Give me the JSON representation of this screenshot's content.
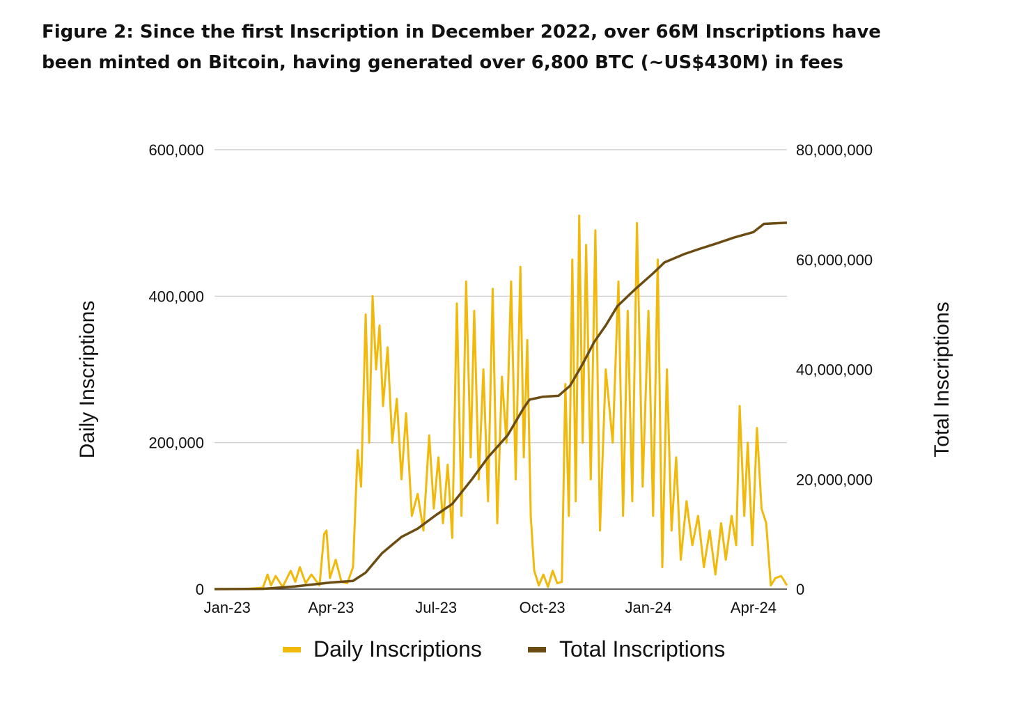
{
  "title_lines": [
    "Figure 2: Since the first Inscription in December 2022, over 66M Inscriptions have",
    "been minted on Bitcoin, having generated over 6,800 BTC (~US$430M) in fees"
  ],
  "chart_data": {
    "type": "line",
    "x_range": [
      "2022-12-21",
      "2024-04-30"
    ],
    "grid": true,
    "legend_position": "bottom",
    "left_axis": {
      "label": "Daily Inscriptions",
      "range": [
        0,
        600000
      ],
      "ticks": [
        0,
        200000,
        400000,
        600000
      ],
      "tick_labels": [
        "0",
        "200,000",
        "400,000",
        "600,000"
      ]
    },
    "right_axis": {
      "label": "Total Inscriptions",
      "range": [
        0,
        80000000
      ],
      "ticks": [
        0,
        20000000,
        40000000,
        60000000,
        80000000
      ],
      "tick_labels": [
        "0",
        "20,000,000",
        "40,000,000",
        "60,000,000",
        "80,000,000"
      ]
    },
    "x_ticks": [
      {
        "date": "2023-01-01",
        "label": "Jan-23"
      },
      {
        "date": "2023-04-01",
        "label": "Apr-23"
      },
      {
        "date": "2023-07-01",
        "label": "Jul-23"
      },
      {
        "date": "2023-10-01",
        "label": "Oct-23"
      },
      {
        "date": "2024-01-01",
        "label": "Jan-24"
      },
      {
        "date": "2024-04-01",
        "label": "Apr-24"
      }
    ],
    "series": [
      {
        "name": "Daily Inscriptions",
        "axis": "left",
        "color": "#f0b90b",
        "points": [
          [
            "2022-12-21",
            0
          ],
          [
            "2023-01-15",
            0
          ],
          [
            "2023-02-01",
            2000
          ],
          [
            "2023-02-05",
            20000
          ],
          [
            "2023-02-08",
            5000
          ],
          [
            "2023-02-12",
            18000
          ],
          [
            "2023-02-18",
            3000
          ],
          [
            "2023-02-25",
            25000
          ],
          [
            "2023-03-01",
            10000
          ],
          [
            "2023-03-05",
            30000
          ],
          [
            "2023-03-10",
            8000
          ],
          [
            "2023-03-15",
            20000
          ],
          [
            "2023-03-22",
            5000
          ],
          [
            "2023-03-26",
            75000
          ],
          [
            "2023-03-28",
            80000
          ],
          [
            "2023-03-31",
            15000
          ],
          [
            "2023-04-05",
            40000
          ],
          [
            "2023-04-10",
            10000
          ],
          [
            "2023-04-15",
            8000
          ],
          [
            "2023-04-20",
            30000
          ],
          [
            "2023-04-24",
            190000
          ],
          [
            "2023-04-27",
            140000
          ],
          [
            "2023-05-01",
            375000
          ],
          [
            "2023-05-04",
            200000
          ],
          [
            "2023-05-07",
            400000
          ],
          [
            "2023-05-10",
            300000
          ],
          [
            "2023-05-13",
            360000
          ],
          [
            "2023-05-16",
            250000
          ],
          [
            "2023-05-20",
            330000
          ],
          [
            "2023-05-24",
            200000
          ],
          [
            "2023-05-28",
            260000
          ],
          [
            "2023-06-01",
            150000
          ],
          [
            "2023-06-05",
            240000
          ],
          [
            "2023-06-10",
            100000
          ],
          [
            "2023-06-15",
            130000
          ],
          [
            "2023-06-20",
            80000
          ],
          [
            "2023-06-25",
            210000
          ],
          [
            "2023-06-29",
            110000
          ],
          [
            "2023-07-03",
            180000
          ],
          [
            "2023-07-07",
            90000
          ],
          [
            "2023-07-11",
            170000
          ],
          [
            "2023-07-15",
            70000
          ],
          [
            "2023-07-19",
            390000
          ],
          [
            "2023-07-23",
            100000
          ],
          [
            "2023-07-27",
            420000
          ],
          [
            "2023-07-31",
            180000
          ],
          [
            "2023-08-03",
            380000
          ],
          [
            "2023-08-07",
            150000
          ],
          [
            "2023-08-11",
            300000
          ],
          [
            "2023-08-15",
            120000
          ],
          [
            "2023-08-19",
            410000
          ],
          [
            "2023-08-23",
            90000
          ],
          [
            "2023-08-27",
            290000
          ],
          [
            "2023-08-31",
            200000
          ],
          [
            "2023-09-04",
            420000
          ],
          [
            "2023-09-08",
            150000
          ],
          [
            "2023-09-12",
            440000
          ],
          [
            "2023-09-15",
            180000
          ],
          [
            "2023-09-18",
            340000
          ],
          [
            "2023-09-21",
            100000
          ],
          [
            "2023-09-24",
            25000
          ],
          [
            "2023-09-28",
            5000
          ],
          [
            "2023-10-02",
            20000
          ],
          [
            "2023-10-06",
            3000
          ],
          [
            "2023-10-10",
            25000
          ],
          [
            "2023-10-14",
            8000
          ],
          [
            "2023-10-18",
            10000
          ],
          [
            "2023-10-21",
            280000
          ],
          [
            "2023-10-24",
            100000
          ],
          [
            "2023-10-27",
            450000
          ],
          [
            "2023-10-30",
            120000
          ],
          [
            "2023-11-02",
            510000
          ],
          [
            "2023-11-05",
            200000
          ],
          [
            "2023-11-08",
            470000
          ],
          [
            "2023-11-12",
            150000
          ],
          [
            "2023-11-16",
            490000
          ],
          [
            "2023-11-20",
            80000
          ],
          [
            "2023-11-25",
            300000
          ],
          [
            "2023-12-01",
            200000
          ],
          [
            "2023-12-06",
            420000
          ],
          [
            "2023-12-10",
            100000
          ],
          [
            "2023-12-14",
            380000
          ],
          [
            "2023-12-18",
            120000
          ],
          [
            "2023-12-22",
            500000
          ],
          [
            "2023-12-27",
            140000
          ],
          [
            "2024-01-01",
            380000
          ],
          [
            "2024-01-05",
            100000
          ],
          [
            "2024-01-09",
            450000
          ],
          [
            "2024-01-13",
            30000
          ],
          [
            "2024-01-17",
            300000
          ],
          [
            "2024-01-21",
            80000
          ],
          [
            "2024-01-25",
            180000
          ],
          [
            "2024-01-29",
            40000
          ],
          [
            "2024-02-03",
            120000
          ],
          [
            "2024-02-08",
            60000
          ],
          [
            "2024-02-13",
            100000
          ],
          [
            "2024-02-18",
            30000
          ],
          [
            "2024-02-23",
            80000
          ],
          [
            "2024-02-28",
            20000
          ],
          [
            "2024-03-04",
            90000
          ],
          [
            "2024-03-08",
            40000
          ],
          [
            "2024-03-13",
            100000
          ],
          [
            "2024-03-17",
            60000
          ],
          [
            "2024-03-20",
            250000
          ],
          [
            "2024-03-24",
            100000
          ],
          [
            "2024-03-27",
            200000
          ],
          [
            "2024-03-31",
            60000
          ],
          [
            "2024-04-04",
            220000
          ],
          [
            "2024-04-08",
            110000
          ],
          [
            "2024-04-12",
            90000
          ],
          [
            "2024-04-16",
            5000
          ],
          [
            "2024-04-20",
            15000
          ],
          [
            "2024-04-25",
            18000
          ],
          [
            "2024-04-30",
            5000
          ]
        ]
      },
      {
        "name": "Total Inscriptions",
        "axis": "right",
        "color": "#6b4c12",
        "points": [
          [
            "2022-12-21",
            0
          ],
          [
            "2023-02-01",
            50000
          ],
          [
            "2023-03-01",
            500000
          ],
          [
            "2023-04-01",
            1200000
          ],
          [
            "2023-04-20",
            1500000
          ],
          [
            "2023-05-01",
            3000000
          ],
          [
            "2023-05-15",
            6500000
          ],
          [
            "2023-06-01",
            9500000
          ],
          [
            "2023-06-15",
            11000000
          ],
          [
            "2023-07-01",
            13500000
          ],
          [
            "2023-07-15",
            15500000
          ],
          [
            "2023-08-01",
            20000000
          ],
          [
            "2023-08-15",
            24000000
          ],
          [
            "2023-09-01",
            28000000
          ],
          [
            "2023-09-15",
            33000000
          ],
          [
            "2023-09-20",
            34500000
          ],
          [
            "2023-10-01",
            35000000
          ],
          [
            "2023-10-15",
            35200000
          ],
          [
            "2023-10-25",
            37000000
          ],
          [
            "2023-11-05",
            41000000
          ],
          [
            "2023-11-15",
            45000000
          ],
          [
            "2023-11-25",
            48000000
          ],
          [
            "2023-12-05",
            51500000
          ],
          [
            "2023-12-20",
            54500000
          ],
          [
            "2024-01-05",
            57500000
          ],
          [
            "2024-01-15",
            59500000
          ],
          [
            "2024-02-01",
            61000000
          ],
          [
            "2024-02-15",
            62000000
          ],
          [
            "2024-03-01",
            63000000
          ],
          [
            "2024-03-15",
            64000000
          ],
          [
            "2024-04-01",
            65000000
          ],
          [
            "2024-04-10",
            66500000
          ],
          [
            "2024-04-30",
            66700000
          ]
        ]
      }
    ]
  }
}
